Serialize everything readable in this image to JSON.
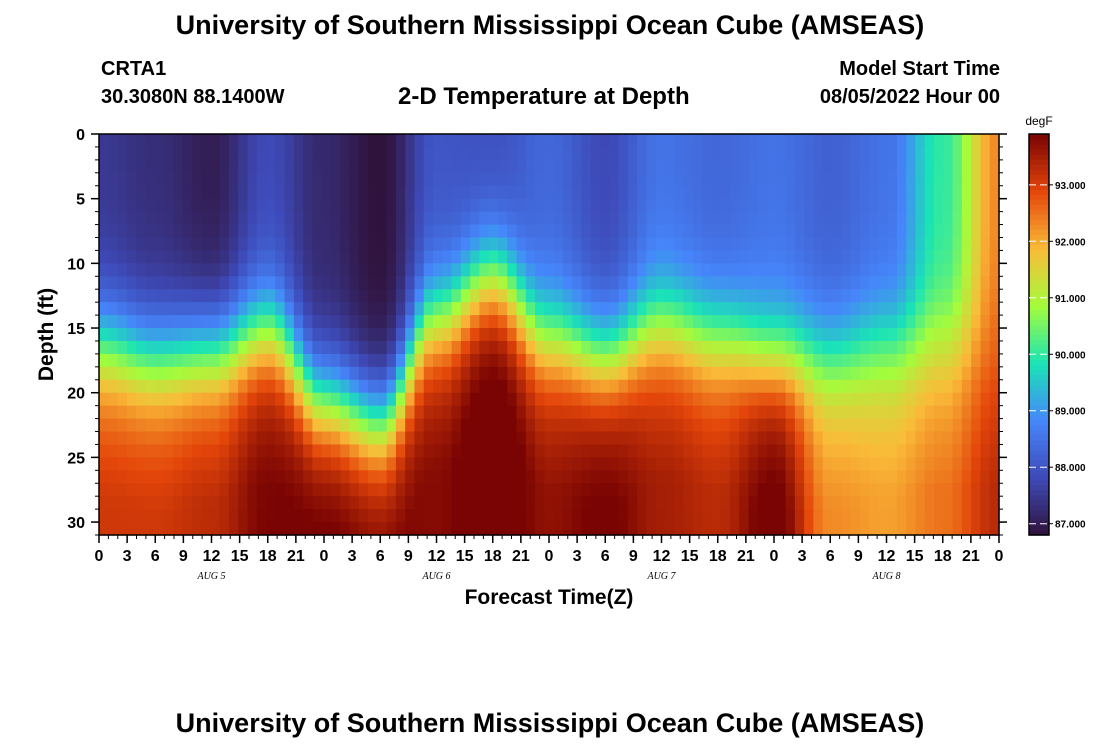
{
  "header": {
    "title": "University of Southern Mississippi Ocean Cube (AMSEAS)",
    "station": "CRTA1",
    "coords": "30.3080N  88.1400W",
    "plot_title": "2-D Temperature at Depth",
    "start_label": "Model Start Time",
    "start_value": "08/05/2022 Hour 00"
  },
  "footer": {
    "title": "University of Southern Mississippi Ocean Cube (AMSEAS)"
  },
  "chart_data": {
    "type": "heatmap",
    "title": "2-D Temperature at Depth",
    "xlabel": "Forecast Time(Z)",
    "ylabel": "Depth (ft)",
    "colorbar_label": "degF",
    "x_hours": [
      0,
      6,
      12,
      18,
      24,
      30,
      36,
      42,
      48,
      54,
      60,
      66,
      72,
      78,
      84,
      90,
      96
    ],
    "x_tick_labels": [
      "0",
      "3",
      "6",
      "9",
      "12",
      "15",
      "18",
      "21",
      "0",
      "3",
      "6",
      "9",
      "12",
      "15",
      "18",
      "21",
      "0",
      "3",
      "6",
      "9",
      "12",
      "15",
      "18",
      "21",
      "0",
      "3",
      "6",
      "9",
      "12",
      "15",
      "18",
      "21",
      "0"
    ],
    "day_labels": [
      "AUG 5",
      "AUG 6",
      "AUG 7",
      "AUG 8"
    ],
    "y_ticks": [
      0,
      5,
      10,
      15,
      20,
      25,
      30
    ],
    "ylim": [
      0,
      31
    ],
    "xlim_hours": [
      0,
      96
    ],
    "colorbar_ticks": [
      "87.000",
      "88.000",
      "89.000",
      "90.000",
      "91.000",
      "92.000",
      "93.000"
    ],
    "colorbar_range": [
      86.8,
      93.9
    ],
    "thermocline_depth_ft": [
      16,
      17,
      16.5,
      15,
      20.5,
      22,
      14,
      11,
      15.5,
      17,
      14.5,
      15.5,
      17,
      17,
      16,
      15.5,
      15
    ],
    "surface_temp_degF": [
      87.5,
      87.3,
      87.0,
      87.8,
      87.2,
      86.8,
      88.0,
      87.9,
      88.3,
      87.8,
      88.5,
      88.3,
      88.5,
      88.2,
      88.5,
      90.0,
      92.3
    ],
    "deep_temp_degF": [
      92.6,
      92.6,
      92.8,
      93.4,
      93.6,
      93.4,
      93.3,
      93.8,
      93.2,
      93.5,
      93.0,
      92.8,
      93.6,
      91.8,
      91.6,
      92.0,
      92.8
    ]
  },
  "colors": {
    "colormap": [
      "#30123b",
      "#3e4ab8",
      "#4686fb",
      "#1ae4b6",
      "#a4fc3c",
      "#fabb39",
      "#e4460a",
      "#7a0403"
    ]
  }
}
